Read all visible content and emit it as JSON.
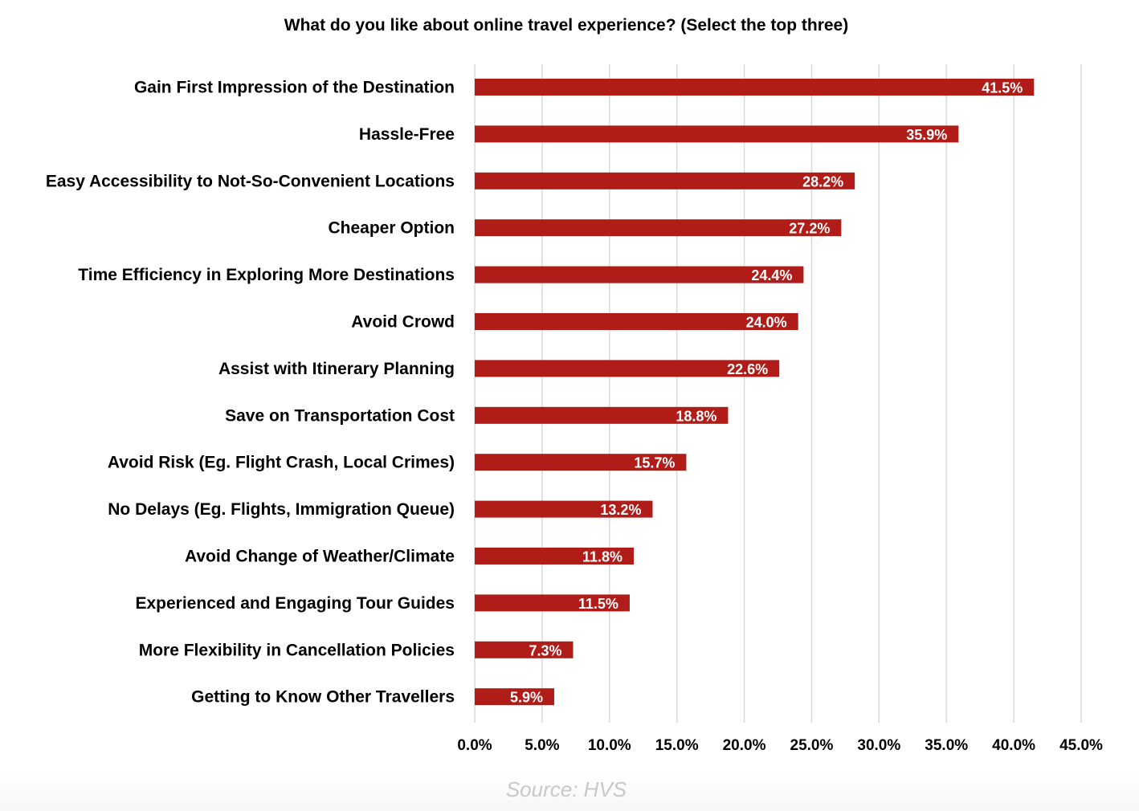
{
  "chart_data": {
    "type": "bar",
    "orientation": "horizontal",
    "title": "What do you like about online travel experience? (Select the top three)",
    "categories": [
      "Gain First Impression of the Destination",
      "Hassle-Free",
      "Easy Accessibility to Not-So-Convenient Locations",
      "Cheaper Option",
      "Time Efficiency in Exploring More Destinations",
      "Avoid Crowd",
      "Assist with Itinerary Planning",
      "Save on Transportation Cost",
      "Avoid Risk (Eg. Flight Crash, Local Crimes)",
      "No Delays (Eg. Flights, Immigration Queue)",
      "Avoid Change of Weather/Climate",
      "Experienced and Engaging Tour Guides",
      "More Flexibility in Cancellation Policies",
      "Getting to Know Other Travellers"
    ],
    "values": [
      41.5,
      35.9,
      28.2,
      27.2,
      24.4,
      24.0,
      22.6,
      18.8,
      15.7,
      13.2,
      11.8,
      11.5,
      7.3,
      5.9
    ],
    "data_labels": [
      "41.5%",
      "35.9%",
      "28.2%",
      "27.2%",
      "24.4%",
      "24.0%",
      "22.6%",
      "18.8%",
      "15.7%",
      "13.2%",
      "11.8%",
      "11.5%",
      "7.3%",
      "5.9%"
    ],
    "xlim": [
      0,
      45
    ],
    "x_ticks": [
      0,
      5,
      10,
      15,
      20,
      25,
      30,
      35,
      40,
      45
    ],
    "x_tick_labels": [
      "0.0%",
      "5.0%",
      "10.0%",
      "15.0%",
      "20.0%",
      "25.0%",
      "30.0%",
      "35.0%",
      "40.0%",
      "45.0%"
    ],
    "xlabel": "",
    "ylabel": "",
    "grid": "vertical",
    "legend": "none",
    "bar_color": "#b01c17",
    "label_color": "#ffffff"
  },
  "source": "Source: HVS"
}
